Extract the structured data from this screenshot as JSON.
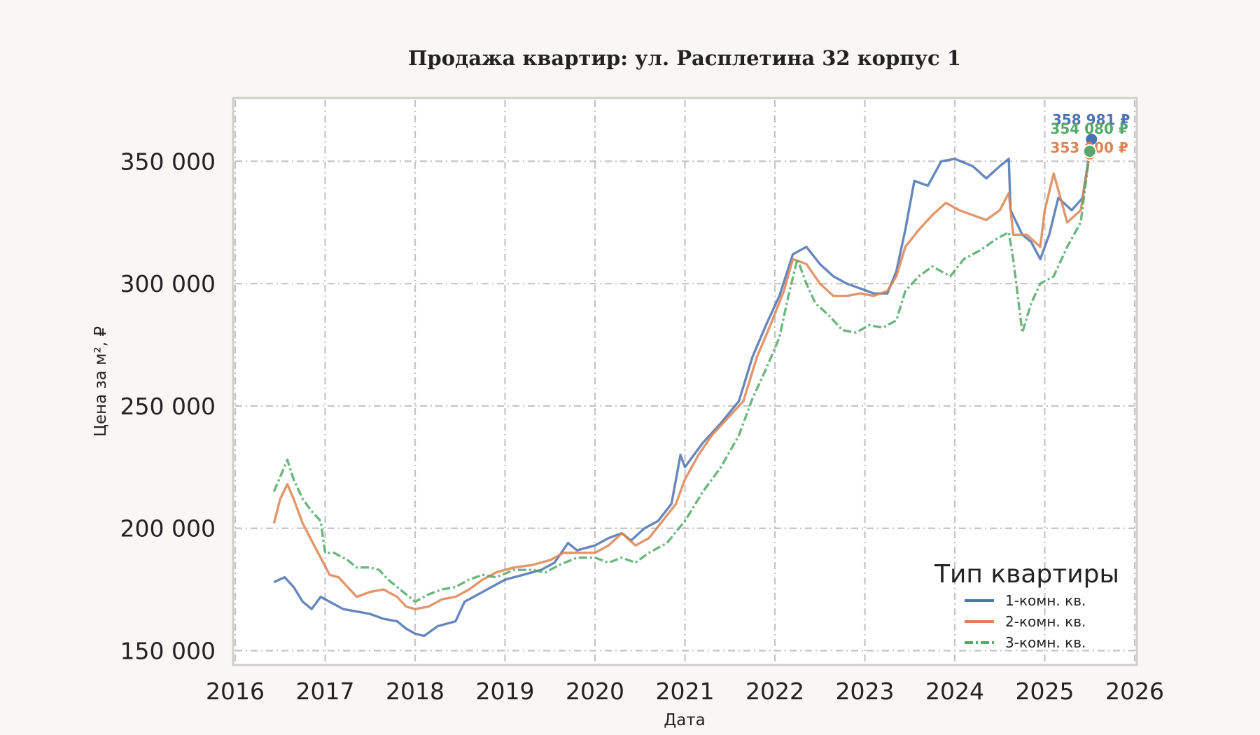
{
  "chart_data": {
    "type": "line",
    "title": "Продажа квартир: ул. Расплетина 32 корпус 1",
    "xlabel": "Дата",
    "ylabel": "Цена за м², ₽",
    "xlim": [
      2016,
      2026
    ],
    "ylim": [
      145000,
      375000
    ],
    "x_ticks": [
      2016,
      2017,
      2018,
      2019,
      2020,
      2021,
      2022,
      2023,
      2024,
      2025,
      2026
    ],
    "x_tick_labels": [
      "2016",
      "2017",
      "2018",
      "2019",
      "2020",
      "2021",
      "2022",
      "2023",
      "2024",
      "2025",
      "2026"
    ],
    "y_ticks": [
      150000,
      200000,
      250000,
      300000,
      350000
    ],
    "y_tick_labels": [
      "150 000",
      "200 000",
      "250 000",
      "300 000",
      "350 000"
    ],
    "grid": true,
    "legend": {
      "title": "Тип квартиры",
      "position": "bottom-right"
    },
    "series": [
      {
        "name": "1-комн. кв.",
        "color": "#4c72b0",
        "dash": "solid",
        "end_label": "358 981 ₽",
        "points": [
          [
            2016.43,
            178000
          ],
          [
            2016.55,
            180000
          ],
          [
            2016.65,
            176000
          ],
          [
            2016.75,
            170000
          ],
          [
            2016.85,
            167000
          ],
          [
            2016.95,
            172000
          ],
          [
            2017.05,
            170000
          ],
          [
            2017.2,
            167000
          ],
          [
            2017.35,
            166000
          ],
          [
            2017.5,
            165000
          ],
          [
            2017.65,
            163000
          ],
          [
            2017.8,
            162000
          ],
          [
            2017.9,
            159000
          ],
          [
            2018.0,
            157000
          ],
          [
            2018.1,
            156000
          ],
          [
            2018.25,
            160000
          ],
          [
            2018.45,
            162000
          ],
          [
            2018.55,
            170000
          ],
          [
            2018.7,
            173000
          ],
          [
            2018.85,
            176000
          ],
          [
            2019.0,
            179000
          ],
          [
            2019.2,
            181000
          ],
          [
            2019.4,
            183000
          ],
          [
            2019.55,
            186000
          ],
          [
            2019.7,
            194000
          ],
          [
            2019.8,
            191000
          ],
          [
            2020.0,
            193000
          ],
          [
            2020.15,
            196000
          ],
          [
            2020.3,
            198000
          ],
          [
            2020.4,
            195000
          ],
          [
            2020.55,
            200000
          ],
          [
            2020.7,
            203000
          ],
          [
            2020.85,
            210000
          ],
          [
            2020.95,
            230000
          ],
          [
            2021.0,
            225000
          ],
          [
            2021.2,
            235000
          ],
          [
            2021.4,
            243000
          ],
          [
            2021.6,
            252000
          ],
          [
            2021.75,
            270000
          ],
          [
            2021.9,
            283000
          ],
          [
            2022.05,
            295000
          ],
          [
            2022.2,
            312000
          ],
          [
            2022.35,
            315000
          ],
          [
            2022.5,
            308000
          ],
          [
            2022.65,
            303000
          ],
          [
            2022.8,
            300000
          ],
          [
            2022.95,
            298000
          ],
          [
            2023.1,
            296000
          ],
          [
            2023.25,
            296000
          ],
          [
            2023.35,
            305000
          ],
          [
            2023.45,
            322000
          ],
          [
            2023.55,
            342000
          ],
          [
            2023.7,
            340000
          ],
          [
            2023.85,
            350000
          ],
          [
            2024.0,
            351000
          ],
          [
            2024.2,
            348000
          ],
          [
            2024.35,
            343000
          ],
          [
            2024.5,
            348000
          ],
          [
            2024.6,
            351000
          ],
          [
            2024.62,
            330000
          ],
          [
            2024.75,
            320000
          ],
          [
            2024.85,
            317000
          ],
          [
            2024.95,
            310000
          ],
          [
            2025.05,
            320000
          ],
          [
            2025.15,
            335000
          ],
          [
            2025.3,
            330000
          ],
          [
            2025.42,
            335000
          ],
          [
            2025.52,
            358981
          ]
        ]
      },
      {
        "name": "2-комн. кв.",
        "color": "#dd8452",
        "dash": "solid",
        "end_label": "353 000 ₽",
        "points": [
          [
            2016.43,
            202000
          ],
          [
            2016.5,
            212000
          ],
          [
            2016.58,
            218000
          ],
          [
            2016.65,
            212000
          ],
          [
            2016.75,
            202000
          ],
          [
            2016.85,
            195000
          ],
          [
            2016.95,
            188000
          ],
          [
            2017.05,
            181000
          ],
          [
            2017.15,
            180000
          ],
          [
            2017.25,
            176000
          ],
          [
            2017.35,
            172000
          ],
          [
            2017.5,
            174000
          ],
          [
            2017.65,
            175000
          ],
          [
            2017.8,
            172000
          ],
          [
            2017.9,
            168000
          ],
          [
            2018.0,
            167000
          ],
          [
            2018.15,
            168000
          ],
          [
            2018.3,
            171000
          ],
          [
            2018.45,
            172000
          ],
          [
            2018.6,
            175000
          ],
          [
            2018.75,
            179000
          ],
          [
            2018.9,
            182000
          ],
          [
            2019.1,
            184000
          ],
          [
            2019.3,
            185000
          ],
          [
            2019.5,
            187000
          ],
          [
            2019.65,
            190000
          ],
          [
            2019.8,
            190000
          ],
          [
            2020.0,
            190000
          ],
          [
            2020.15,
            193000
          ],
          [
            2020.3,
            198000
          ],
          [
            2020.45,
            193000
          ],
          [
            2020.6,
            196000
          ],
          [
            2020.75,
            203000
          ],
          [
            2020.9,
            210000
          ],
          [
            2021.0,
            220000
          ],
          [
            2021.15,
            230000
          ],
          [
            2021.3,
            238000
          ],
          [
            2021.5,
            246000
          ],
          [
            2021.65,
            252000
          ],
          [
            2021.8,
            270000
          ],
          [
            2021.95,
            283000
          ],
          [
            2022.1,
            297000
          ],
          [
            2022.2,
            310000
          ],
          [
            2022.35,
            308000
          ],
          [
            2022.5,
            300000
          ],
          [
            2022.65,
            295000
          ],
          [
            2022.8,
            295000
          ],
          [
            2022.95,
            296000
          ],
          [
            2023.1,
            295000
          ],
          [
            2023.25,
            297000
          ],
          [
            2023.35,
            303000
          ],
          [
            2023.45,
            315000
          ],
          [
            2023.6,
            322000
          ],
          [
            2023.75,
            328000
          ],
          [
            2023.9,
            333000
          ],
          [
            2024.05,
            330000
          ],
          [
            2024.2,
            328000
          ],
          [
            2024.35,
            326000
          ],
          [
            2024.5,
            330000
          ],
          [
            2024.6,
            337000
          ],
          [
            2024.65,
            320000
          ],
          [
            2024.8,
            320000
          ],
          [
            2024.95,
            315000
          ],
          [
            2025.0,
            330000
          ],
          [
            2025.1,
            345000
          ],
          [
            2025.25,
            325000
          ],
          [
            2025.4,
            330000
          ],
          [
            2025.5,
            353000
          ]
        ]
      },
      {
        "name": "3-комн. кв.",
        "color": "#55a868",
        "dash": "dashdot",
        "end_label": "354 080 ₽",
        "points": [
          [
            2016.43,
            215000
          ],
          [
            2016.5,
            221000
          ],
          [
            2016.58,
            228000
          ],
          [
            2016.65,
            220000
          ],
          [
            2016.75,
            212000
          ],
          [
            2016.85,
            207000
          ],
          [
            2016.95,
            203000
          ],
          [
            2017.0,
            190000
          ],
          [
            2017.1,
            190000
          ],
          [
            2017.25,
            187000
          ],
          [
            2017.35,
            184000
          ],
          [
            2017.5,
            184000
          ],
          [
            2017.6,
            183000
          ],
          [
            2017.7,
            179000
          ],
          [
            2017.8,
            176000
          ],
          [
            2017.9,
            173000
          ],
          [
            2018.0,
            170000
          ],
          [
            2018.15,
            173000
          ],
          [
            2018.3,
            175000
          ],
          [
            2018.45,
            176000
          ],
          [
            2018.6,
            179000
          ],
          [
            2018.75,
            181000
          ],
          [
            2018.9,
            180000
          ],
          [
            2019.1,
            183000
          ],
          [
            2019.3,
            183000
          ],
          [
            2019.45,
            182000
          ],
          [
            2019.6,
            185000
          ],
          [
            2019.8,
            188000
          ],
          [
            2020.0,
            188000
          ],
          [
            2020.15,
            186000
          ],
          [
            2020.3,
            188000
          ],
          [
            2020.45,
            186000
          ],
          [
            2020.6,
            190000
          ],
          [
            2020.8,
            194000
          ],
          [
            2021.0,
            203000
          ],
          [
            2021.2,
            215000
          ],
          [
            2021.4,
            225000
          ],
          [
            2021.6,
            238000
          ],
          [
            2021.75,
            253000
          ],
          [
            2021.9,
            265000
          ],
          [
            2022.05,
            278000
          ],
          [
            2022.15,
            295000
          ],
          [
            2022.25,
            310000
          ],
          [
            2022.35,
            300000
          ],
          [
            2022.45,
            292000
          ],
          [
            2022.6,
            287000
          ],
          [
            2022.75,
            281000
          ],
          [
            2022.9,
            280000
          ],
          [
            2023.05,
            283000
          ],
          [
            2023.2,
            282000
          ],
          [
            2023.35,
            285000
          ],
          [
            2023.45,
            297000
          ],
          [
            2023.6,
            303000
          ],
          [
            2023.75,
            307000
          ],
          [
            2023.95,
            303000
          ],
          [
            2024.1,
            310000
          ],
          [
            2024.3,
            314000
          ],
          [
            2024.45,
            318000
          ],
          [
            2024.6,
            321000
          ],
          [
            2024.65,
            310000
          ],
          [
            2024.75,
            280000
          ],
          [
            2024.85,
            292000
          ],
          [
            2024.95,
            300000
          ],
          [
            2025.1,
            303000
          ],
          [
            2025.25,
            315000
          ],
          [
            2025.4,
            325000
          ],
          [
            2025.5,
            354080
          ]
        ]
      }
    ]
  }
}
